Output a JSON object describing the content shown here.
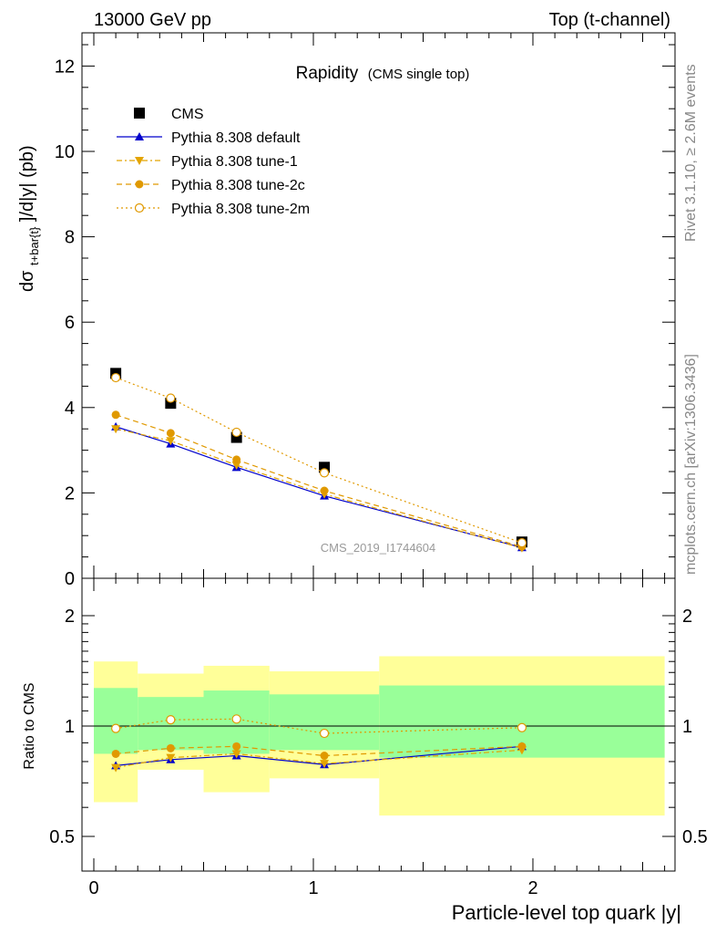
{
  "header": {
    "left": "13000 GeV pp",
    "right": "Top (t-channel)"
  },
  "side_labels": {
    "rivet": "Rivet 3.1.10, ≥ 2.6M events",
    "mcplots": "mcplots.cern.ch [arXiv:1306.3436]"
  },
  "chart_data": [
    {
      "type": "scatter",
      "title": "Rapidity",
      "subtitle": "(CMS single top)",
      "ylabel_parts": {
        "pre": "dσ",
        "sub": "t+bar{t}",
        "post": "]/d|y|  (pb)"
      },
      "ylim": [
        0,
        12.8
      ],
      "xlim": [
        -0.05,
        2.65
      ],
      "yticks": [
        0,
        2,
        4,
        6,
        8,
        10,
        12
      ],
      "watermark": "CMS_2019_I1744604",
      "legend_position": "top-left",
      "x": [
        0.1,
        0.35,
        0.65,
        1.05,
        1.95
      ],
      "series": [
        {
          "name": "CMS",
          "values": [
            4.8,
            4.1,
            3.3,
            2.6,
            0.85
          ],
          "color": "#000000",
          "marker": "square"
        },
        {
          "name": "Pythia 8.308 default",
          "values": [
            3.55,
            3.15,
            2.6,
            1.93,
            0.72
          ],
          "color": "#0000cc",
          "marker": "triangle-up",
          "line": "solid"
        },
        {
          "name": "Pythia 8.308 tune-1",
          "values": [
            3.5,
            3.22,
            2.65,
            1.97,
            0.71
          ],
          "color": "#e3a400",
          "marker": "triangle-down",
          "line": "dashdot"
        },
        {
          "name": "Pythia 8.308 tune-2c",
          "values": [
            3.83,
            3.4,
            2.78,
            2.05,
            0.74
          ],
          "color": "#e09900",
          "marker": "circle",
          "line": "dashed"
        },
        {
          "name": "Pythia 8.308 tune-2m",
          "values": [
            4.7,
            4.22,
            3.42,
            2.47,
            0.83
          ],
          "color": "#e09900",
          "marker": "open-circle",
          "line": "dotted"
        }
      ]
    },
    {
      "type": "line",
      "ylabel": "Ratio to CMS",
      "xlabel": "Particle-level top quark |y|",
      "ylim": [
        0.34,
        2.24
      ],
      "yticks": [
        0.5,
        1,
        2
      ],
      "xticks": [
        0,
        1,
        2
      ],
      "bins": [
        {
          "lo": 0.0,
          "hi": 0.2,
          "green": [
            0.84,
            1.27
          ],
          "yellow": [
            0.62,
            1.5
          ]
        },
        {
          "lo": 0.2,
          "hi": 0.5,
          "green": [
            0.86,
            1.2
          ],
          "yellow": [
            0.76,
            1.39
          ]
        },
        {
          "lo": 0.5,
          "hi": 0.8,
          "green": [
            0.84,
            1.25
          ],
          "yellow": [
            0.66,
            1.46
          ]
        },
        {
          "lo": 0.8,
          "hi": 1.3,
          "green": [
            0.86,
            1.22
          ],
          "yellow": [
            0.72,
            1.41
          ]
        },
        {
          "lo": 1.3,
          "hi": 2.6,
          "green": [
            0.82,
            1.29
          ],
          "yellow": [
            0.57,
            1.55
          ]
        }
      ],
      "x": [
        0.1,
        0.35,
        0.65,
        1.05,
        1.95
      ],
      "series": [
        {
          "name": "Pythia 8.308 default",
          "values": [
            0.78,
            0.81,
            0.83,
            0.785,
            0.88
          ],
          "color": "#0000cc",
          "marker": "triangle-up",
          "line": "solid"
        },
        {
          "name": "Pythia 8.308 tune-1",
          "values": [
            0.77,
            0.82,
            0.84,
            0.79,
            0.86
          ],
          "color": "#e3a400",
          "marker": "triangle-down",
          "line": "dashdot"
        },
        {
          "name": "Pythia 8.308 tune-2c",
          "values": [
            0.84,
            0.87,
            0.88,
            0.83,
            0.88
          ],
          "color": "#e09900",
          "marker": "circle",
          "line": "dashed"
        },
        {
          "name": "Pythia 8.308 tune-2m",
          "values": [
            0.985,
            1.04,
            1.045,
            0.955,
            0.99
          ],
          "color": "#e09900",
          "marker": "open-circle",
          "line": "dotted"
        }
      ]
    }
  ]
}
